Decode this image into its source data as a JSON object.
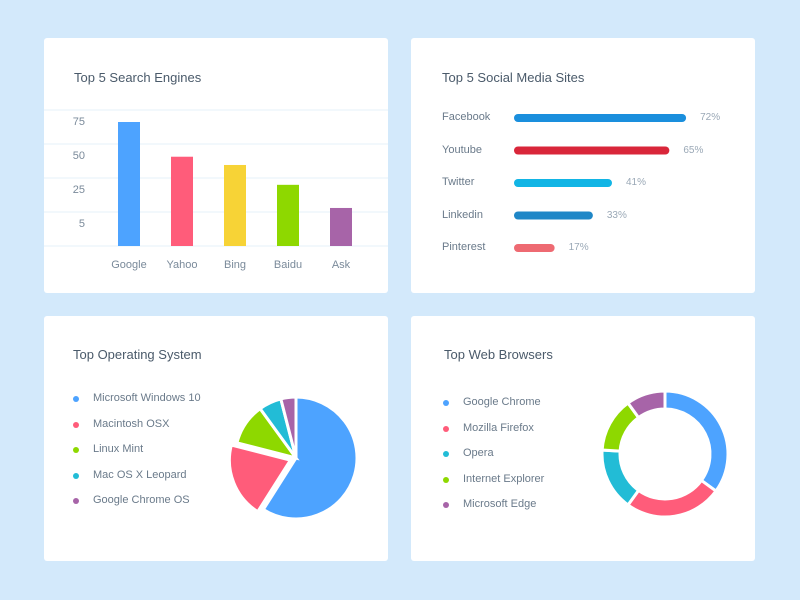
{
  "chart_data": [
    {
      "type": "bar",
      "title": "Top 5 Search Engines",
      "categories": [
        "Google",
        "Yahoo",
        "Bing",
        "Baidu",
        "Ask"
      ],
      "values": [
        75,
        54,
        49,
        37,
        23
      ],
      "yticks": [
        "75",
        "50",
        "25",
        "5"
      ],
      "colors": [
        "#4da3ff",
        "#ff5c7a",
        "#f7d336",
        "#8ed800",
        "#a764a8"
      ],
      "grid": true
    },
    {
      "type": "bar",
      "orientation": "horizontal",
      "title": "Top 5 Social Media Sites",
      "categories": [
        "Facebook",
        "Youtube",
        "Twitter",
        "Linkedin",
        "Pinterest"
      ],
      "values": [
        72,
        65,
        41,
        33,
        17
      ],
      "value_labels": [
        "72%",
        "65%",
        "41%",
        "33%",
        "17%"
      ],
      "colors": [
        "#1a8fdd",
        "#d9263a",
        "#12b5e5",
        "#1f87c7",
        "#ee6a72"
      ]
    },
    {
      "type": "pie",
      "title": "Top Operating System",
      "categories": [
        "Microsoft Windows 10",
        "Macintosh OSX",
        "Linux Mint",
        "Mac OS X Leopard",
        "Google Chrome OS"
      ],
      "values": [
        59,
        20,
        11,
        6,
        4
      ],
      "colors": [
        "#4da3ff",
        "#ff5c7a",
        "#8ed800",
        "#22bcd6",
        "#a764a8"
      ],
      "legend": "left"
    },
    {
      "type": "pie",
      "donut": true,
      "title": "Top Web Browsers",
      "categories": [
        "Google Chrome",
        "Mozilla Firefox",
        "Opera",
        "Internet Explorer",
        "Microsoft Edge"
      ],
      "values": [
        35,
        25,
        16,
        14,
        10
      ],
      "colors": [
        "#4da3ff",
        "#ff5c7a",
        "#22bcd6",
        "#8ed800",
        "#a764a8"
      ],
      "legend": "left"
    }
  ]
}
